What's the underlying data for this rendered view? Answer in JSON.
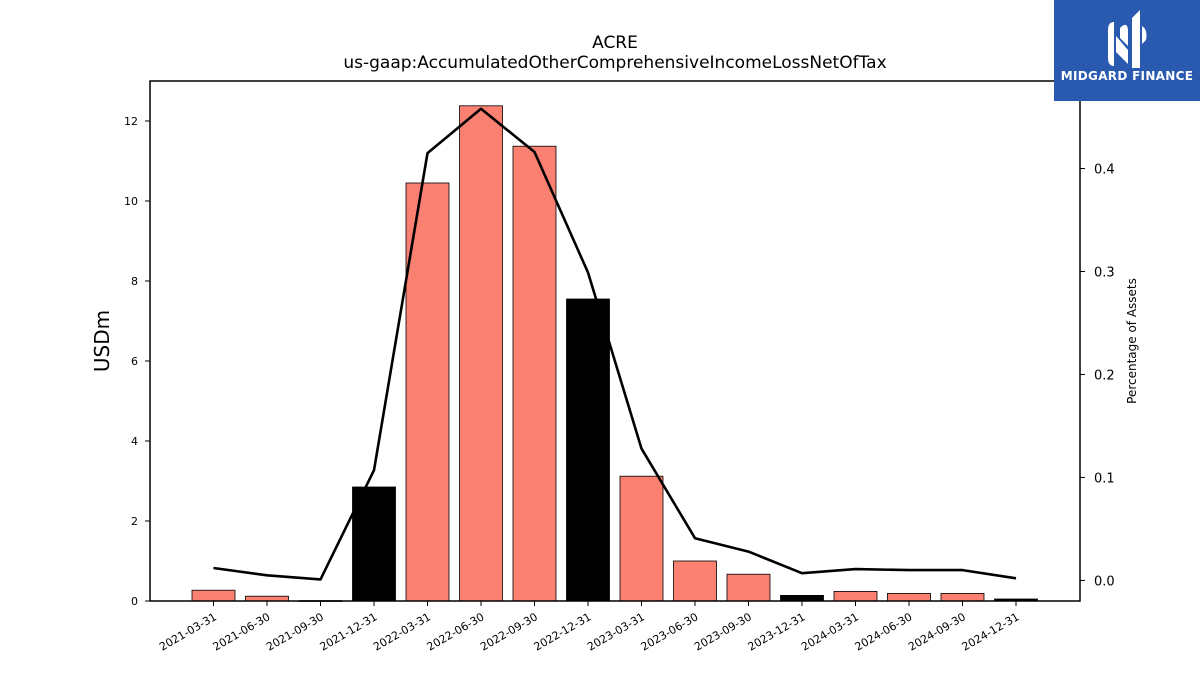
{
  "chart_data": {
    "type": "bar",
    "title": "ACRE",
    "subtitle": "us-gaap:AccumulatedOtherComprehensiveIncomeLossNetOfTax",
    "ylabel": "USDm",
    "y2label": "Percentage of Assets",
    "categories": [
      "2021-03-31",
      "2021-06-30",
      "2021-09-30",
      "2021-12-31",
      "2022-03-31",
      "2022-06-30",
      "2022-09-30",
      "2022-12-31",
      "2023-03-31",
      "2023-06-30",
      "2023-09-30",
      "2023-12-31",
      "2024-03-31",
      "2024-06-30",
      "2024-09-30",
      "2024-12-31"
    ],
    "series": [
      {
        "type": "bar",
        "values": [
          0.27,
          0.12,
          0.01,
          2.85,
          10.45,
          12.38,
          11.37,
          7.55,
          3.12,
          1.0,
          0.67,
          0.14,
          0.24,
          0.19,
          0.19,
          0.05
        ],
        "colors": [
          "#fa8072",
          "#fa8072",
          "#fa8072",
          "#000000",
          "#fa8072",
          "#fa8072",
          "#fa8072",
          "#000000",
          "#fa8072",
          "#fa8072",
          "#fa8072",
          "#000000",
          "#fa8072",
          "#fa8072",
          "#fa8072",
          "#000000"
        ]
      },
      {
        "type": "line",
        "axis": "right",
        "values": [
          0.012,
          0.005,
          0.001,
          0.107,
          0.415,
          0.458,
          0.416,
          0.299,
          0.128,
          0.041,
          0.028,
          0.007,
          0.011,
          0.01,
          0.01,
          0.002
        ],
        "color": "#000000"
      }
    ],
    "ylim": [
      0,
      13
    ],
    "yticks": [
      0,
      2,
      4,
      6,
      8,
      10,
      12
    ],
    "y2lim": [
      -0.02,
      0.485
    ],
    "y2ticks": [
      0.0,
      0.1,
      0.2,
      0.3,
      0.4
    ],
    "grid": false,
    "legend": "none"
  },
  "logo": {
    "text": "MIDGARD FINANCE",
    "background": "#2a5ab0"
  }
}
